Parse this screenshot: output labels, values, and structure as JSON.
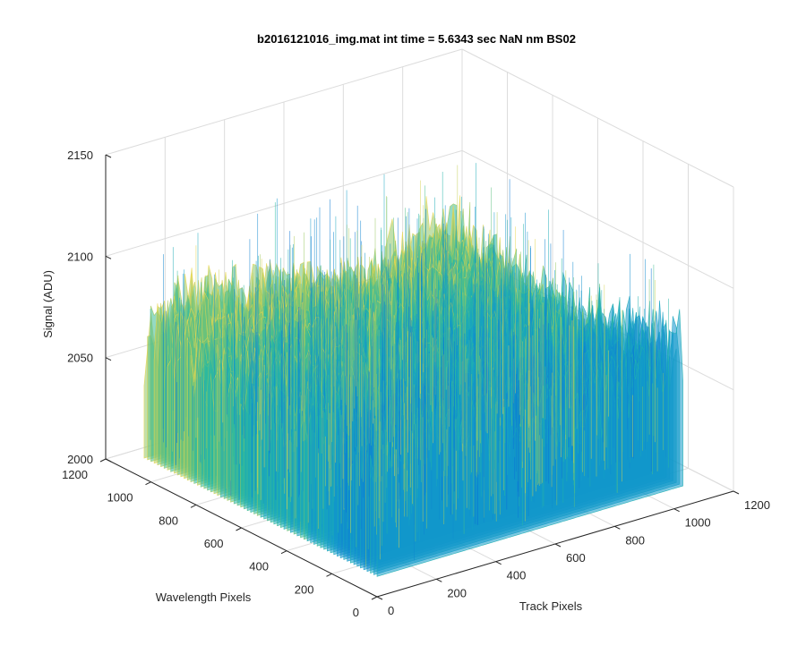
{
  "chart_data": {
    "type": "surface",
    "title": "b2016121016_img.mat int time = 5.6343 sec  NaN nm BS02",
    "xlabel": "Track Pixels",
    "ylabel": "Wavelength Pixels",
    "zlabel": "Signal (ADU)",
    "xlim": [
      0,
      1200
    ],
    "ylim": [
      0,
      1200
    ],
    "zlim": [
      2000,
      2150
    ],
    "xticks": [
      "0",
      "200",
      "400",
      "600",
      "800",
      "1000",
      "1200"
    ],
    "yticks": [
      "0",
      "200",
      "400",
      "600",
      "800",
      "1000",
      "1200"
    ],
    "zticks": [
      "2000",
      "2050",
      "2100",
      "2150"
    ],
    "grid": true,
    "colormap": "parula",
    "surface_extent": {
      "x": [
        0,
        1030
      ],
      "y": [
        0,
        1030
      ]
    },
    "signal_approx": {
      "mean": 2070,
      "min": 2010,
      "max": 2140,
      "noise_amplitude": 25
    },
    "colors": {
      "low": "#0072bd",
      "mid": "#1fb3a8",
      "high": "#e0d35a"
    }
  }
}
